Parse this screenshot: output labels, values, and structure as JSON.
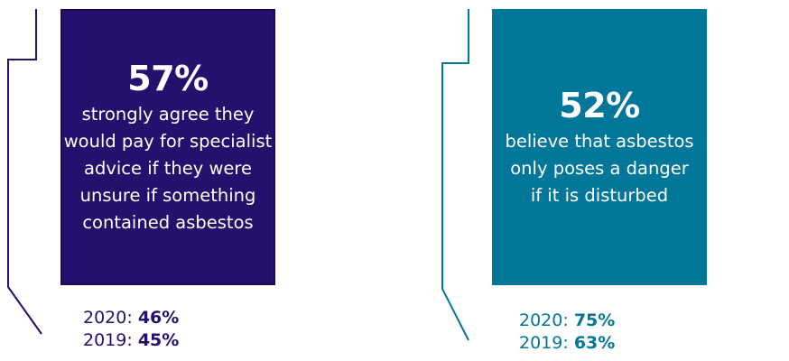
{
  "left_card": {
    "percent": "57%",
    "description": "strongly agree they would pay for specialist advice if they were unsure if something contained asbestos",
    "color": "#24106d",
    "history": [
      {
        "year": "2020",
        "value": "46%"
      },
      {
        "year": "2019",
        "value": "45%"
      }
    ]
  },
  "right_card": {
    "percent": "52%",
    "description": "believe that asbestos only poses a danger if it is disturbed",
    "color": "#03779a",
    "history": [
      {
        "year": "2020",
        "value": "75%"
      },
      {
        "year": "2019",
        "value": "63%"
      }
    ]
  }
}
